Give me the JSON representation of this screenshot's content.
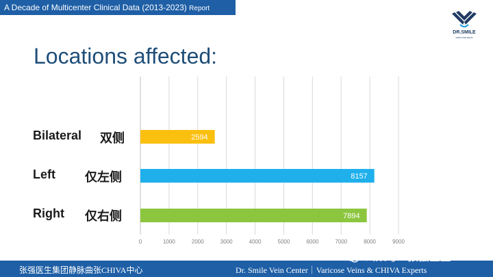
{
  "header": {
    "report_title": "A Decade of Multicenter Clinical Data (2013-2023)",
    "report_suffix": "Report"
  },
  "logo": {
    "name": "DR.SMILE",
    "tagline": "VARICOSE VEINS",
    "icon": "wing-logo-icon"
  },
  "slide": {
    "title": "Locations affected:"
  },
  "chart_data": {
    "type": "bar",
    "orientation": "horizontal",
    "categories": [
      "Bilateral",
      "Left",
      "Right"
    ],
    "categories_cn": [
      "双侧",
      "仅左侧",
      "仅右侧"
    ],
    "values": [
      2594,
      8157,
      7894
    ],
    "data_labels": [
      "2594",
      "8157",
      "7894"
    ],
    "bar_colors": [
      "#fbbf10",
      "#1fb0ec",
      "#8cc63f"
    ],
    "xlim": [
      0,
      9000
    ],
    "xticks": [
      0,
      1000,
      2000,
      3000,
      4000,
      5000,
      6000,
      7000,
      8000,
      9000
    ],
    "grid": true,
    "legend": "none",
    "title": "",
    "xlabel": "",
    "ylabel": ""
  },
  "footer": {
    "left": "张强医生集团静脉曲张CHIVA中心",
    "right": "Dr. Smile Vein Center｜Varicose Veins & CHIVA Experts"
  },
  "watermark": {
    "text": "公众号 · 张强医生",
    "icon": "wechat-icon"
  },
  "colors": {
    "bar_blue": "#1e5fa6",
    "title": "#1f4e79"
  }
}
